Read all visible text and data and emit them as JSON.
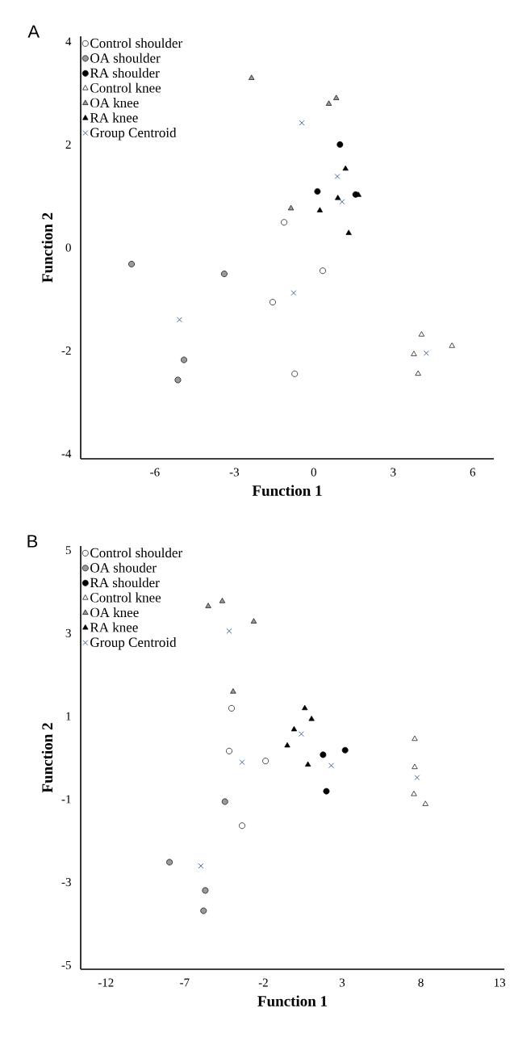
{
  "chart_data": [
    {
      "type": "scatter",
      "title": "A",
      "xlabel": "Function 1",
      "ylabel": "Function 2",
      "xlim": [
        -8.8,
        6.8
      ],
      "ylim": [
        -4.1,
        4.1
      ],
      "xticks": [
        -6,
        -3,
        0,
        3,
        6
      ],
      "yticks": [
        -4,
        -2,
        0,
        2,
        4
      ],
      "legend": "top left",
      "series": [
        {
          "name": "Control shoulder",
          "color": "#ffffff",
          "marker": "circle",
          "x": [
            -1.12,
            0.34,
            -1.55,
            -0.72
          ],
          "values": [
            0.49,
            -0.45,
            -1.06,
            -2.45
          ]
        },
        {
          "name": "OA shoulder",
          "color": "#9a9a9a",
          "marker": "circle",
          "x": [
            -6.88,
            -3.38,
            -4.9,
            -5.13
          ],
          "values": [
            -0.32,
            -0.51,
            -2.18,
            -2.57
          ]
        },
        {
          "name": "RA shoulder",
          "color": "#000000",
          "marker": "circle",
          "x": [
            0.99,
            0.14,
            1.58
          ],
          "values": [
            2.0,
            1.09,
            1.03
          ]
        },
        {
          "name": "Control knee",
          "color": "#ffffff",
          "marker": "triangle",
          "x": [
            4.07,
            3.78,
            3.94,
            5.22
          ],
          "values": [
            -1.69,
            -2.07,
            -2.45,
            -1.91
          ]
        },
        {
          "name": "OA knee",
          "color": "#9a9a9a",
          "marker": "triangle",
          "x": [
            -2.35,
            0.57,
            0.85,
            -0.86
          ],
          "values": [
            3.29,
            2.79,
            2.9,
            0.76
          ]
        },
        {
          "name": "RA knee",
          "color": "#000000",
          "marker": "triangle",
          "x": [
            1.2,
            0.91,
            1.69,
            0.23,
            1.32
          ],
          "values": [
            1.53,
            0.96,
            1.02,
            0.72,
            0.28
          ]
        },
        {
          "name": "Group Centroid",
          "color": "#2e5c9a",
          "marker": "cross",
          "x": [
            -0.45,
            0.89,
            1.07,
            -0.76,
            -5.07,
            4.25
          ],
          "values": [
            2.42,
            1.38,
            0.89,
            -0.88,
            -1.4,
            -2.05
          ]
        }
      ]
    },
    {
      "type": "scatter",
      "title": "B",
      "xlabel": "Function 1",
      "ylabel": "Function 2",
      "xlim": [
        -13.6,
        13.3
      ],
      "ylim": [
        -5.1,
        5.1
      ],
      "xticks": [
        -12,
        -7,
        -2,
        3,
        8,
        13
      ],
      "yticks": [
        -5,
        -3,
        -1,
        1,
        3,
        5
      ],
      "legend": "top left",
      "series": [
        {
          "name": "Control shoulder",
          "color": "#ffffff",
          "marker": "circle",
          "x": [
            -4.02,
            -4.17,
            -1.86,
            -3.35
          ],
          "values": [
            1.19,
            0.16,
            -0.08,
            -1.64
          ]
        },
        {
          "name": "OA shouder",
          "color": "#9a9a9a",
          "marker": "circle",
          "x": [
            -4.44,
            -7.96,
            -5.69,
            -5.8
          ],
          "values": [
            -1.06,
            -2.52,
            -3.2,
            -3.69
          ]
        },
        {
          "name": "RA shoulder",
          "color": "#000000",
          "marker": "circle",
          "x": [
            1.79,
            3.19,
            2.0
          ],
          "values": [
            0.07,
            0.18,
            -0.81
          ]
        },
        {
          "name": "Control knee",
          "color": "#ffffff",
          "marker": "triangle",
          "x": [
            7.61,
            7.61,
            7.56,
            8.29
          ],
          "values": [
            0.45,
            -0.23,
            -0.88,
            -1.12
          ]
        },
        {
          "name": "OA knee",
          "color": "#9a9a9a",
          "marker": "triangle",
          "x": [
            -5.5,
            -4.61,
            -2.61,
            -3.92
          ],
          "values": [
            3.65,
            3.77,
            3.28,
            1.59
          ]
        },
        {
          "name": "RA knee",
          "color": "#000000",
          "marker": "triangle",
          "x": [
            0.63,
            1.06,
            -0.05,
            -0.48,
            0.83
          ],
          "values": [
            1.19,
            0.93,
            0.68,
            0.29,
            -0.17
          ]
        },
        {
          "name": "Group Centroid",
          "color": "#2e5c9a",
          "marker": "cross",
          "x": [
            -4.17,
            0.41,
            -3.35,
            2.31,
            7.76,
            -5.97
          ],
          "values": [
            3.05,
            0.57,
            -0.11,
            -0.19,
            -0.48,
            -2.61
          ]
        }
      ]
    }
  ]
}
